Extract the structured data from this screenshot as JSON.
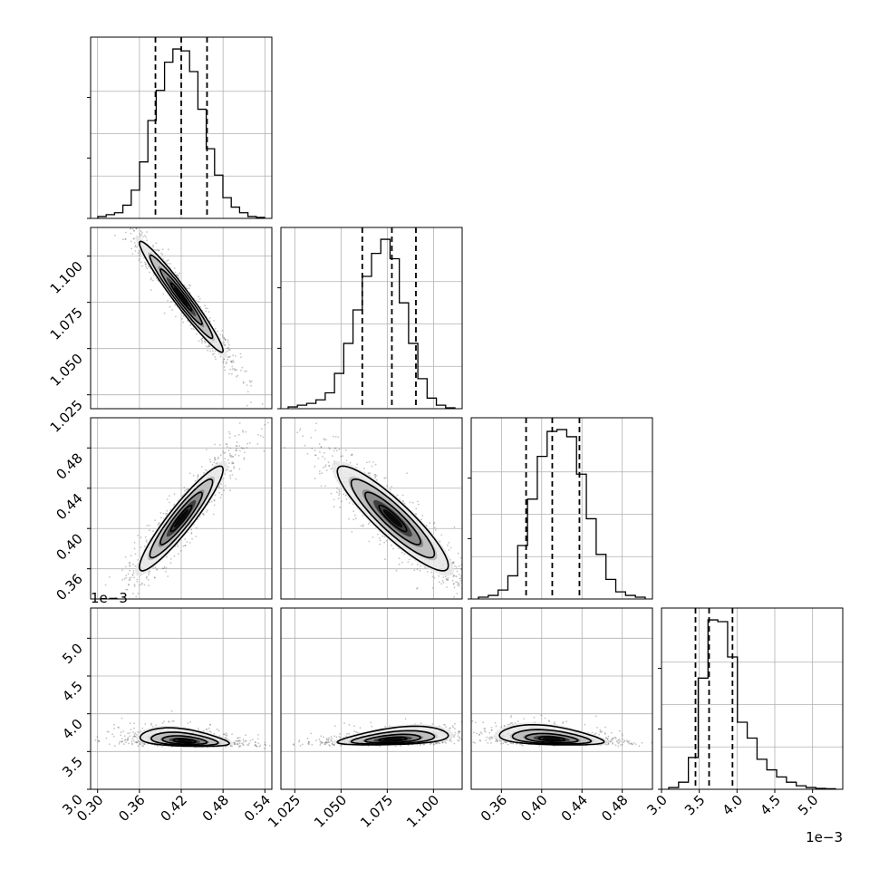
{
  "chart_data": {
    "type": "corner",
    "title": "",
    "parameters": [
      {
        "id": "p0",
        "name": "",
        "range": [
          0.29,
          0.55
        ],
        "ticks": [
          0.3,
          0.36,
          0.42,
          0.48,
          0.54
        ],
        "tick_labels": [
          "0.30",
          "0.36",
          "0.42",
          "0.48",
          "0.54"
        ],
        "row_range": [
          0.29,
          0.55
        ],
        "row_ticks": [],
        "row_tick_labels": [],
        "quantiles": [
          0.383,
          0.42,
          0.457
        ],
        "hist_counts": [
          1,
          2,
          3,
          7,
          15,
          30,
          52,
          68,
          83,
          90,
          89,
          78,
          58,
          37,
          23,
          11,
          6,
          3,
          1,
          0.5
        ]
      },
      {
        "id": "p1",
        "name": "",
        "range": [
          1.0175,
          1.1155
        ],
        "ticks": [
          1.025,
          1.05,
          1.075,
          1.1
        ],
        "tick_labels": [
          "1.025",
          "1.050",
          "1.075",
          "1.100"
        ],
        "row_range": [
          1.0175,
          1.1155
        ],
        "row_ticks": [
          1.025,
          1.05,
          1.075,
          1.1
        ],
        "row_tick_labels": [
          "1.025",
          "1.050",
          "1.075",
          "1.100"
        ],
        "quantiles": [
          1.0615,
          1.0775,
          1.0905
        ],
        "hist_counts": [
          1,
          2,
          3,
          5,
          9,
          20,
          37,
          56,
          75,
          88,
          96,
          85,
          60,
          37,
          17,
          6,
          2,
          0.5
        ]
      },
      {
        "id": "p2",
        "name": "",
        "range": [
          0.33,
          0.51
        ],
        "ticks": [
          0.36,
          0.4,
          0.44,
          0.48
        ],
        "tick_labels": [
          "0.36",
          "0.40",
          "0.44",
          "0.48"
        ],
        "row_range": [
          0.33,
          0.51
        ],
        "row_ticks": [
          0.36,
          0.4,
          0.44,
          0.48
        ],
        "row_tick_labels": [
          "0.36",
          "0.40",
          "0.44",
          "0.48"
        ],
        "quantiles": [
          0.3845,
          0.4105,
          0.4375
        ],
        "hist_counts": [
          1,
          2,
          5,
          13,
          30,
          56,
          80,
          94,
          95,
          91,
          70,
          45,
          25,
          11,
          4,
          2,
          1
        ]
      },
      {
        "id": "p3",
        "name": "",
        "range": [
          3.0,
          5.4
        ],
        "ticks": [
          3.0,
          3.5,
          4.0,
          4.5,
          5.0
        ],
        "tick_labels": [
          "3.0",
          "3.5",
          "4.0",
          "4.5",
          "5.0"
        ],
        "row_range": [
          3.0,
          5.4
        ],
        "row_ticks": [
          3.0,
          3.5,
          4.0,
          4.5,
          5.0
        ],
        "row_tick_labels": [
          "3.0",
          "3.5",
          "4.0",
          "4.5",
          "5.0"
        ],
        "quantiles": [
          3.45,
          3.63,
          3.94
        ],
        "hist_counts": [
          1,
          4,
          18,
          63,
          96,
          95,
          75,
          38,
          29,
          17,
          11,
          7,
          4,
          2,
          1,
          0.5,
          0.3
        ],
        "scale_label": "1e−3"
      }
    ],
    "pairs": [
      {
        "x": "p0",
        "y": "p1",
        "center": [
          0.42,
          1.078
        ],
        "sd": [
          0.03,
          0.015
        ],
        "rho": -0.97
      },
      {
        "x": "p0",
        "y": "p2",
        "center": [
          0.42,
          0.41
        ],
        "sd": [
          0.03,
          0.026
        ],
        "rho": 0.93
      },
      {
        "x": "p1",
        "y": "p2",
        "center": [
          1.078,
          0.41
        ],
        "sd": [
          0.015,
          0.026
        ],
        "rho": -0.9
      },
      {
        "x": "p0",
        "y": "p3",
        "center": [
          0.425,
          3.58
        ],
        "sd": [
          0.032,
          0.12
        ],
        "rho": -0.35
      },
      {
        "x": "p1",
        "y": "p3",
        "center": [
          1.078,
          3.6
        ],
        "sd": [
          0.015,
          0.12
        ],
        "rho": 0.4
      },
      {
        "x": "p2",
        "y": "p3",
        "center": [
          0.41,
          3.6
        ],
        "sd": [
          0.026,
          0.13
        ],
        "rho": -0.35
      }
    ],
    "contour_levels": [
      0.5,
      1.0,
      1.5,
      2.0
    ],
    "grid": true,
    "colors": {
      "line": "#000000",
      "grid": "#b0b0b0",
      "points": "#555555"
    }
  }
}
